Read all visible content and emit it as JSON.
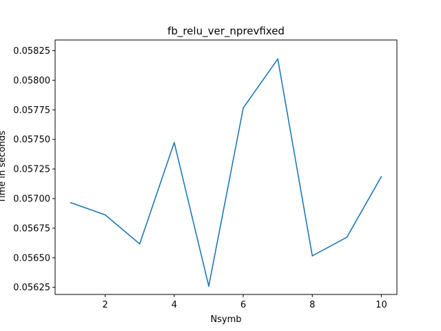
{
  "chart_data": {
    "type": "line",
    "title": "fb_relu_ver_nprevfixed",
    "xlabel": "Nsymb",
    "ylabel": "Time in seconds",
    "x": [
      1,
      2,
      3,
      4,
      5,
      6,
      7,
      8,
      9,
      10
    ],
    "series": [
      {
        "values": [
          0.056966,
          0.056862,
          0.056617,
          0.057474,
          0.05626,
          0.057766,
          0.05818,
          0.056516,
          0.056673,
          0.057186
        ],
        "color": "#1f77b4"
      }
    ],
    "x_ticks": [
      2,
      4,
      6,
      8,
      10
    ],
    "y_ticks": [
      0.05625,
      0.0565,
      0.05675,
      0.057,
      0.05725,
      0.0575,
      0.05775,
      0.058,
      0.05825
    ],
    "y_tick_labels": [
      "0.05625",
      "0.05650",
      "0.05675",
      "0.05700",
      "0.05725",
      "0.05750",
      "0.05775",
      "0.05800",
      "0.05825"
    ],
    "xlim": [
      0.55,
      10.45
    ],
    "ylim": [
      0.05619,
      0.05834
    ],
    "grid": false
  }
}
